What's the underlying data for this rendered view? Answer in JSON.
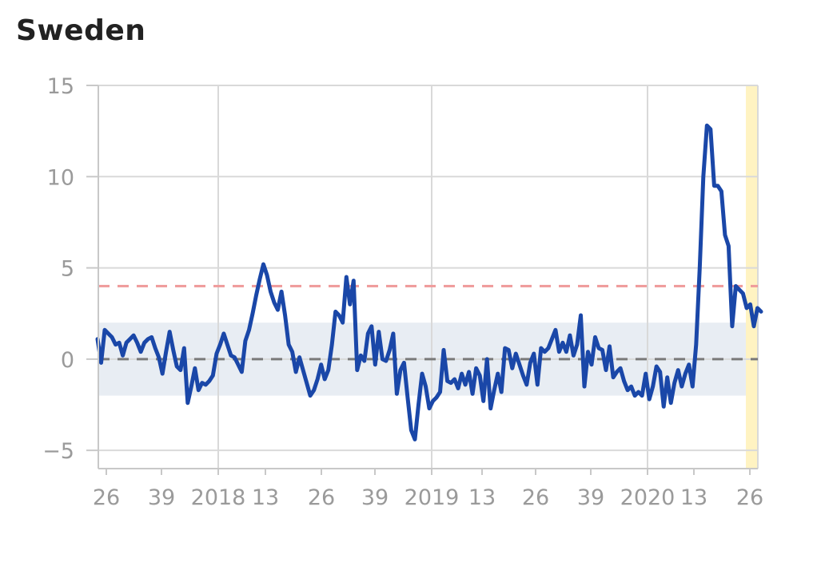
{
  "title": "Sweden",
  "chart_data": {
    "type": "line",
    "title": "Sweden",
    "xlabel": "",
    "ylabel": "",
    "ylim": [
      -6,
      15
    ],
    "yticks": [
      -5,
      0,
      5,
      10,
      15
    ],
    "ytick_labels": [
      "−5",
      "0",
      "5",
      "10",
      "15"
    ],
    "xtick_labels": [
      "26",
      "39",
      "2018",
      "13",
      "26",
      "39",
      "2019",
      "13",
      "26",
      "39",
      "2020",
      "13",
      "26"
    ],
    "grid": true,
    "band": [
      -2,
      2
    ],
    "reference_lines": [
      0,
      4
    ],
    "colors": {
      "line": "#1a47a8",
      "grid": "#d9d9d9",
      "band": "#e8edf3",
      "zero_line": "#7a7a7a",
      "threshold_line": "#ef9a9a",
      "highlight": "#fff3c2"
    },
    "series": [
      {
        "values": [
          1.1,
          -0.2,
          1.6,
          1.4,
          1.2,
          0.8,
          0.9,
          0.2,
          0.9,
          1.1,
          1.3,
          0.9,
          0.4,
          0.9,
          1.1,
          1.2,
          0.6,
          0.1,
          -0.8,
          0.4,
          1.5,
          0.5,
          -0.4,
          -0.6,
          0.6,
          -2.4,
          -1.5,
          -0.5,
          -1.7,
          -1.3,
          -1.4,
          -1.2,
          -0.9,
          0.3,
          0.8,
          1.4,
          0.8,
          0.2,
          0.1,
          -0.3,
          -0.7,
          1.0,
          1.6,
          2.5,
          3.5,
          4.4,
          5.2,
          4.6,
          3.7,
          3.1,
          2.7,
          3.7,
          2.4,
          0.8,
          0.4,
          -0.7,
          0.1,
          -0.6,
          -1.3,
          -2.0,
          -1.7,
          -1.1,
          -0.3,
          -1.1,
          -0.6,
          0.8,
          2.6,
          2.4,
          2.0,
          4.5,
          3.0,
          4.3,
          -0.6,
          0.2,
          -0.1,
          1.4,
          1.8,
          -0.3,
          1.5,
          0.0,
          -0.1,
          0.5,
          1.4,
          -1.9,
          -0.6,
          -0.2,
          -2.1,
          -3.9,
          -4.4,
          -2.5,
          -0.8,
          -1.5,
          -2.7,
          -2.3,
          -2.1,
          -1.8,
          0.5,
          -1.2,
          -1.3,
          -1.1,
          -1.6,
          -0.8,
          -1.4,
          -0.7,
          -1.9,
          -0.5,
          -0.9,
          -2.3,
          0.0,
          -2.7,
          -1.7,
          -0.8,
          -1.8,
          0.6,
          0.5,
          -0.5,
          0.3,
          -0.3,
          -0.9,
          -1.4,
          -0.2,
          0.3,
          -1.4,
          0.6,
          0.4,
          0.6,
          1.1,
          1.6,
          0.4,
          0.9,
          0.4,
          1.3,
          0.2,
          0.8,
          2.4,
          -1.5,
          0.4,
          -0.3,
          1.2,
          0.6,
          0.5,
          -0.6,
          0.7,
          -1.0,
          -0.7,
          -0.5,
          -1.2,
          -1.7,
          -1.5,
          -2.0,
          -1.8,
          -2.0,
          -0.8,
          -2.2,
          -1.5,
          -0.4,
          -0.7,
          -2.6,
          -1.0,
          -2.4,
          -1.3,
          -0.6,
          -1.5,
          -0.8,
          -0.3,
          -1.5,
          0.8,
          5.0,
          10.0,
          12.8,
          12.6,
          9.5,
          9.5,
          9.2,
          6.8,
          6.2,
          1.8,
          4.0,
          3.8,
          3.6,
          2.8,
          3.0,
          1.8,
          2.8,
          2.6
        ]
      }
    ]
  }
}
